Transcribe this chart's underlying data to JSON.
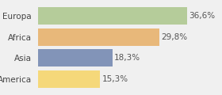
{
  "categories": [
    "Europa",
    "Africa",
    "Asia",
    "America"
  ],
  "values": [
    36.6,
    29.8,
    18.3,
    15.3
  ],
  "labels": [
    "36,6%",
    "29,8%",
    "18,3%",
    "15,3%"
  ],
  "colors": [
    "#b5cc9a",
    "#e8b87a",
    "#8294b8",
    "#f5d87a"
  ],
  "background_color": "#f0f0f0",
  "xlim": [
    0,
    44
  ],
  "bar_height": 0.82,
  "fontsize_cat": 7.5,
  "fontsize_val": 7.5
}
